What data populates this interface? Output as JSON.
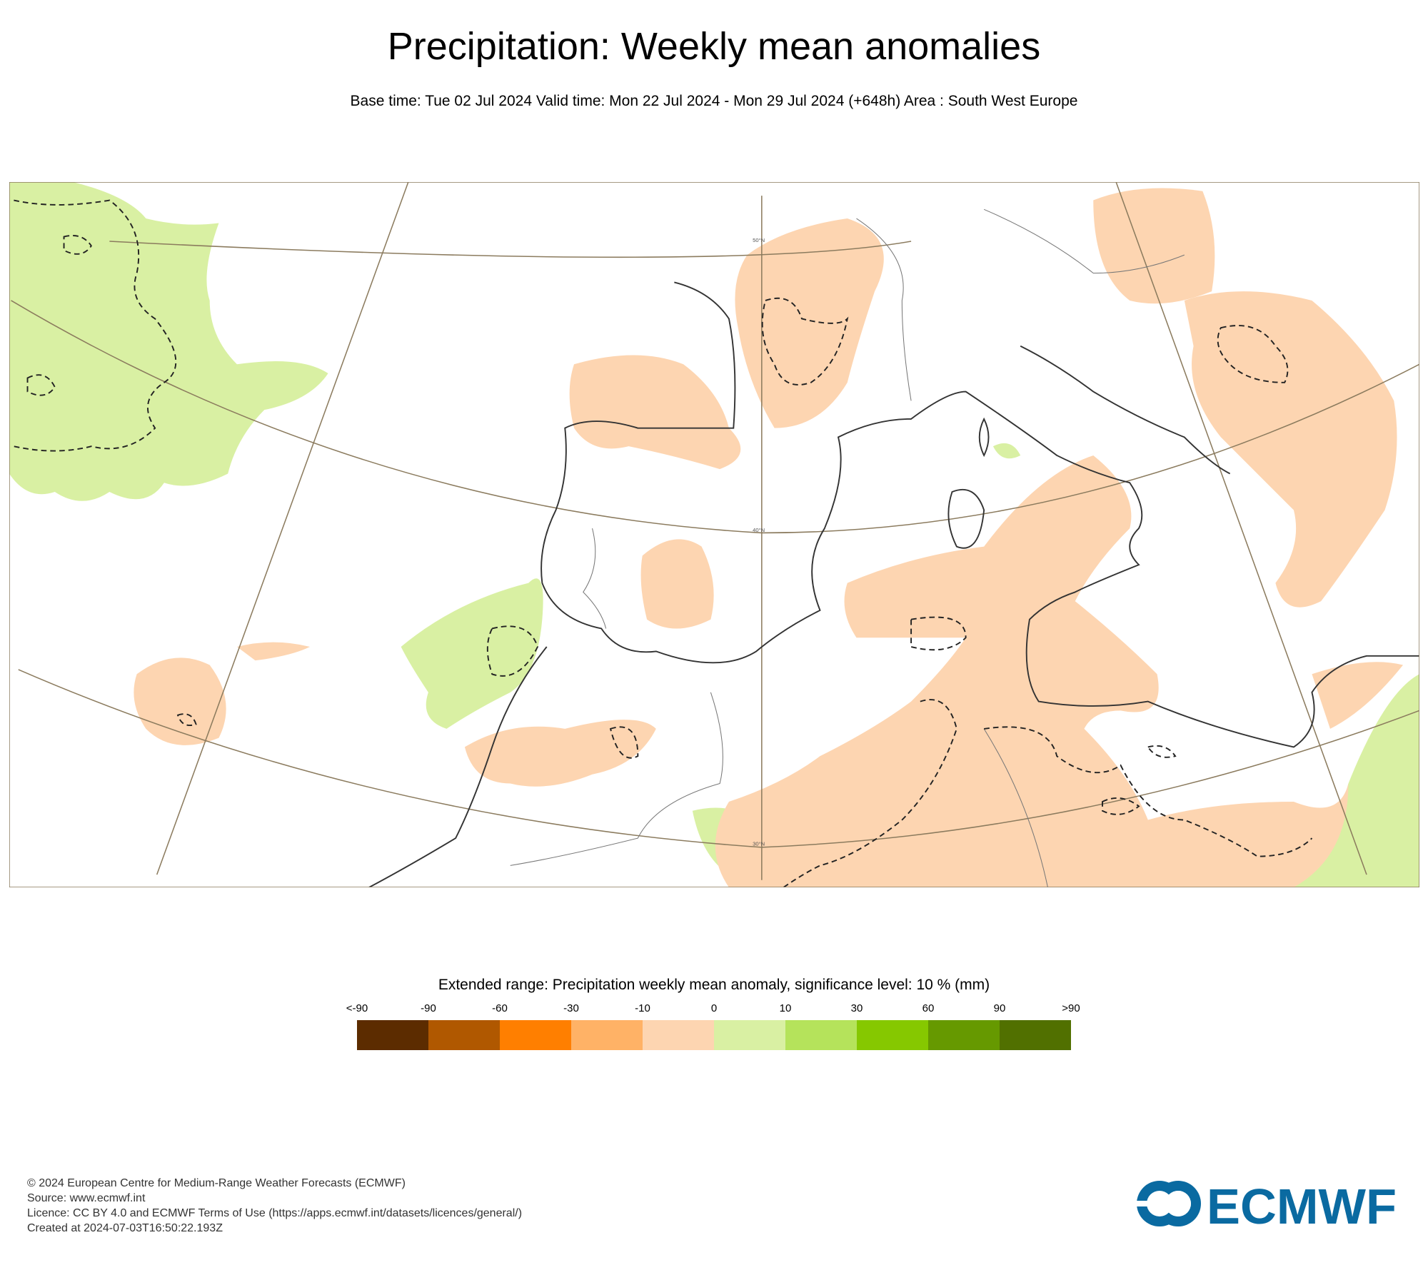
{
  "header": {
    "title": "Precipitation: Weekly mean anomalies",
    "subtitle": "Base time: Tue 02 Jul 2024 Valid time: Mon 22 Jul 2024 - Mon 29 Jul 2024 (+648h) Area : South West Europe"
  },
  "map": {
    "lat_labels": [
      "50°N",
      "40°N",
      "30°N"
    ],
    "colors": {
      "light_orange": "#fdd5b1",
      "light_green": "#d9f0a3",
      "coast": "#333333",
      "grid": "#8b7b5e"
    }
  },
  "legend": {
    "title": "Extended range: Precipitation weekly mean anomaly, significance level: 10 % (mm)",
    "ticks": [
      "<-90",
      "-90",
      "-60",
      "-30",
      "-10",
      "0",
      "10",
      "30",
      "60",
      "90",
      ">90"
    ],
    "colors": [
      "#5c2c00",
      "#b05800",
      "#ff7f00",
      "#ffb266",
      "#fdd5b1",
      "#d9f0a3",
      "#b5e35b",
      "#86c800",
      "#669900",
      "#517000"
    ]
  },
  "footer": {
    "lines": [
      "© 2024 European Centre for Medium-Range Weather Forecasts (ECMWF)",
      "Source: www.ecmwf.int",
      "Licence: CC BY 4.0 and ECMWF Terms of Use (https://apps.ecmwf.int/datasets/licences/general/)",
      "Created at 2024-07-03T16:50:22.193Z"
    ],
    "logo_text": "ECMWF",
    "logo_color": "#0a6aa1"
  }
}
